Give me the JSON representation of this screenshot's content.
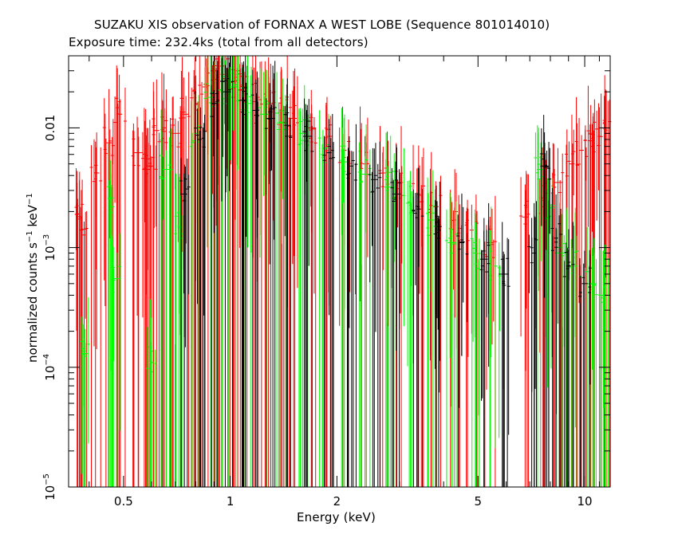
{
  "chart_data": {
    "type": "scatter",
    "title": "SUZAKU XIS observation of FORNAX A WEST LOBE (Sequence 801014010)",
    "subtitle": "Exposure time: 232.4ks (total from all detectors)",
    "xlabel": "Energy (keV)",
    "ylabel": {
      "text": "normalized counts s",
      "exp1": "−1",
      "mid": " keV",
      "exp2": "−1"
    },
    "x_scale": "log",
    "y_scale": "log",
    "xlim": [
      0.35,
      11.8
    ],
    "ylim": [
      1e-05,
      0.04
    ],
    "x_ticks": [
      {
        "value": 0.5,
        "label": "0.5"
      },
      {
        "value": 1,
        "label": "1"
      },
      {
        "value": 2,
        "label": "2"
      },
      {
        "value": 5,
        "label": "5"
      },
      {
        "value": 10,
        "label": "10"
      }
    ],
    "y_ticks": [
      {
        "value": 1e-05,
        "label": "10",
        "exp": "−5"
      },
      {
        "value": 0.0001,
        "label": "10",
        "exp": "−4"
      },
      {
        "value": 0.001,
        "label": "10",
        "exp": "−3"
      },
      {
        "value": 0.01,
        "label": "0.01",
        "exp": ""
      }
    ],
    "series": [
      {
        "color": "#ff0000",
        "points": [
          {
            "x": 0.37,
            "y": 0.0019
          },
          {
            "x": 0.38,
            "y": 0.0014
          },
          {
            "x": 0.42,
            "y": 0.0042
          },
          {
            "x": 0.455,
            "y": 0.0075
          },
          {
            "x": 0.49,
            "y": 0.013
          },
          {
            "x": 0.55,
            "y": 0.0062
          },
          {
            "x": 0.58,
            "y": 0.0045
          },
          {
            "x": 0.6,
            "y": 0.0048
          },
          {
            "x": 0.62,
            "y": 0.0095
          },
          {
            "x": 0.65,
            "y": 0.01
          },
          {
            "x": 0.7,
            "y": 0.009
          },
          {
            "x": 0.75,
            "y": 0.013
          },
          {
            "x": 0.8,
            "y": 0.016
          },
          {
            "x": 0.85,
            "y": 0.022
          },
          {
            "x": 0.9,
            "y": 0.03
          },
          {
            "x": 0.95,
            "y": 0.028
          },
          {
            "x": 1.0,
            "y": 0.024
          },
          {
            "x": 1.05,
            "y": 0.03
          },
          {
            "x": 1.1,
            "y": 0.022
          },
          {
            "x": 1.2,
            "y": 0.018
          },
          {
            "x": 1.3,
            "y": 0.016
          },
          {
            "x": 1.4,
            "y": 0.014
          },
          {
            "x": 1.5,
            "y": 0.012
          },
          {
            "x": 1.7,
            "y": 0.01
          },
          {
            "x": 1.9,
            "y": 0.0085
          },
          {
            "x": 2.1,
            "y": 0.0065
          },
          {
            "x": 2.4,
            "y": 0.005
          },
          {
            "x": 2.7,
            "y": 0.0042
          },
          {
            "x": 3.0,
            "y": 0.0035
          },
          {
            "x": 3.4,
            "y": 0.0028
          },
          {
            "x": 3.8,
            "y": 0.0022
          },
          {
            "x": 4.3,
            "y": 0.0017
          },
          {
            "x": 4.8,
            "y": 0.0014
          },
          {
            "x": 5.4,
            "y": 0.0011
          },
          {
            "x": 6.8,
            "y": 0.0018
          },
          {
            "x": 7.6,
            "y": 0.0026
          },
          {
            "x": 8.4,
            "y": 0.0035
          },
          {
            "x": 9.2,
            "y": 0.005
          },
          {
            "x": 9.8,
            "y": 0.0065
          },
          {
            "x": 10.4,
            "y": 0.0078
          },
          {
            "x": 11.0,
            "y": 0.0085
          },
          {
            "x": 11.5,
            "y": 0.009
          }
        ]
      },
      {
        "color": "#00ff00",
        "points": [
          {
            "x": 0.39,
            "y": 0.00013
          },
          {
            "x": 0.46,
            "y": 0.0026
          },
          {
            "x": 0.48,
            "y": 0.00055
          },
          {
            "x": 0.6,
            "y": 0.00011
          },
          {
            "x": 0.66,
            "y": 0.0045
          },
          {
            "x": 0.72,
            "y": 0.0015
          },
          {
            "x": 0.8,
            "y": 0.009
          },
          {
            "x": 0.88,
            "y": 0.018
          },
          {
            "x": 0.95,
            "y": 0.02
          },
          {
            "x": 1.02,
            "y": 0.022
          },
          {
            "x": 1.12,
            "y": 0.016
          },
          {
            "x": 1.25,
            "y": 0.013
          },
          {
            "x": 1.4,
            "y": 0.011
          },
          {
            "x": 1.6,
            "y": 0.009
          },
          {
            "x": 1.85,
            "y": 0.0068
          },
          {
            "x": 2.1,
            "y": 0.0052
          },
          {
            "x": 2.4,
            "y": 0.0041
          },
          {
            "x": 2.8,
            "y": 0.0032
          },
          {
            "x": 3.2,
            "y": 0.0024
          },
          {
            "x": 3.7,
            "y": 0.0017
          },
          {
            "x": 4.2,
            "y": 0.0011
          },
          {
            "x": 4.9,
            "y": 0.0009
          },
          {
            "x": 5.6,
            "y": 0.0007
          },
          {
            "x": 7.5,
            "y": 0.0045
          },
          {
            "x": 7.9,
            "y": 0.0018
          },
          {
            "x": 8.6,
            "y": 0.0009
          },
          {
            "x": 9.4,
            "y": 0.0007
          },
          {
            "x": 10.5,
            "y": 0.0005
          },
          {
            "x": 11.3,
            "y": 0.0004
          }
        ]
      },
      {
        "color": "#000000",
        "points": [
          {
            "x": 0.74,
            "y": 0.0028
          },
          {
            "x": 0.82,
            "y": 0.008
          },
          {
            "x": 0.9,
            "y": 0.016
          },
          {
            "x": 0.98,
            "y": 0.02
          },
          {
            "x": 1.08,
            "y": 0.017
          },
          {
            "x": 1.18,
            "y": 0.014
          },
          {
            "x": 1.3,
            "y": 0.012
          },
          {
            "x": 1.45,
            "y": 0.0105
          },
          {
            "x": 1.65,
            "y": 0.0085
          },
          {
            "x": 1.9,
            "y": 0.0062
          },
          {
            "x": 2.2,
            "y": 0.0048
          },
          {
            "x": 2.55,
            "y": 0.0037
          },
          {
            "x": 2.95,
            "y": 0.0028
          },
          {
            "x": 3.4,
            "y": 0.0021
          },
          {
            "x": 3.9,
            "y": 0.0015
          },
          {
            "x": 4.5,
            "y": 0.0011
          },
          {
            "x": 5.2,
            "y": 0.0008
          },
          {
            "x": 5.9,
            "y": 0.0006
          },
          {
            "x": 7.2,
            "y": 0.0009
          },
          {
            "x": 7.7,
            "y": 0.0048
          },
          {
            "x": 8.3,
            "y": 0.0012
          },
          {
            "x": 9.0,
            "y": 0.0007
          },
          {
            "x": 10.0,
            "y": 0.0005
          }
        ]
      }
    ]
  }
}
